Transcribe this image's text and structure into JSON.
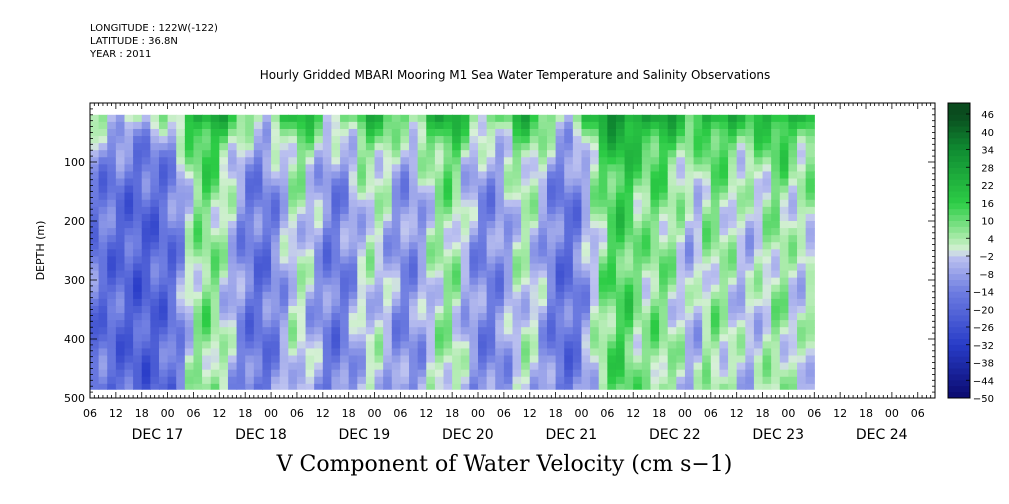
{
  "header": {
    "longitude": "LONGITUDE : 122W(-122)",
    "latitude": "LATITUDE : 36.8N",
    "year": "YEAR : 2011",
    "title": "Hourly Gridded MBARI Mooring M1 Sea Water Temperature and Salinity Observations"
  },
  "footer": {
    "variable_title": "V Component of Water Velocity (cm s−1)"
  },
  "colors": {
    "negative_deep": "#0a0a6e",
    "negative_mid": "#3d57d6",
    "negative_light": "#b8bdee",
    "positive_light": "#b8efb8",
    "positive_mid": "#22cc3c",
    "positive_deep": "#0a4a1e"
  },
  "chart_data": {
    "type": "heatmap",
    "title": "Hourly Gridded MBARI Mooring M1 Sea Water Temperature and Salinity Observations",
    "variable": "V Component of Water Velocity (cm s−1)",
    "xlabel": "",
    "ylabel": "DEPTH (m)",
    "ylim": [
      500,
      0
    ],
    "yticks": [
      100,
      200,
      300,
      400,
      500
    ],
    "hour_ticks": [
      "06",
      "12",
      "18",
      "00",
      "06",
      "12",
      "18",
      "00",
      "06",
      "12",
      "18",
      "00",
      "06",
      "12",
      "18",
      "00",
      "06",
      "12",
      "18",
      "00",
      "06",
      "12",
      "18",
      "00",
      "06",
      "12",
      "18",
      "00",
      "06",
      "12",
      "18",
      "00",
      "06"
    ],
    "day_labels": [
      "DEC 17",
      "DEC 18",
      "DEC 19",
      "DEC 20",
      "DEC 21",
      "DEC 22",
      "DEC 23",
      "DEC 24"
    ],
    "colorbar_labels": [
      "46",
      "40",
      "34",
      "28",
      "22",
      "16",
      "10",
      "4",
      "−2",
      "−8",
      "−14",
      "−20",
      "−26",
      "−32",
      "−38",
      "−44",
      "−50"
    ],
    "colorbar_range": [
      -50,
      50
    ],
    "colorbar_step": 2,
    "data_time_range_hours": [
      6,
      174
    ],
    "data_depth_range_m": [
      20,
      485
    ],
    "v_depth_mean_by_time": [
      [
        6,
        -16
      ],
      [
        10,
        -18
      ],
      [
        14,
        -20
      ],
      [
        18,
        -22
      ],
      [
        22,
        -20
      ],
      [
        26,
        -16
      ],
      [
        30,
        4
      ],
      [
        34,
        8
      ],
      [
        38,
        -2
      ],
      [
        42,
        -14
      ],
      [
        46,
        -18
      ],
      [
        50,
        -10
      ],
      [
        54,
        2
      ],
      [
        58,
        -6
      ],
      [
        62,
        -16
      ],
      [
        66,
        -12
      ],
      [
        70,
        0
      ],
      [
        74,
        -2
      ],
      [
        78,
        -12
      ],
      [
        82,
        -10
      ],
      [
        86,
        2
      ],
      [
        90,
        6
      ],
      [
        94,
        -8
      ],
      [
        98,
        -14
      ],
      [
        102,
        -10
      ],
      [
        106,
        2
      ],
      [
        110,
        -4
      ],
      [
        114,
        -16
      ],
      [
        118,
        -18
      ],
      [
        122,
        -4
      ],
      [
        126,
        10
      ],
      [
        130,
        14
      ],
      [
        134,
        4
      ],
      [
        138,
        8
      ],
      [
        142,
        2
      ],
      [
        146,
        -6
      ],
      [
        150,
        6
      ],
      [
        154,
        2
      ],
      [
        158,
        -4
      ],
      [
        162,
        0
      ],
      [
        166,
        6
      ],
      [
        170,
        -2
      ],
      [
        174,
        2
      ]
    ]
  }
}
